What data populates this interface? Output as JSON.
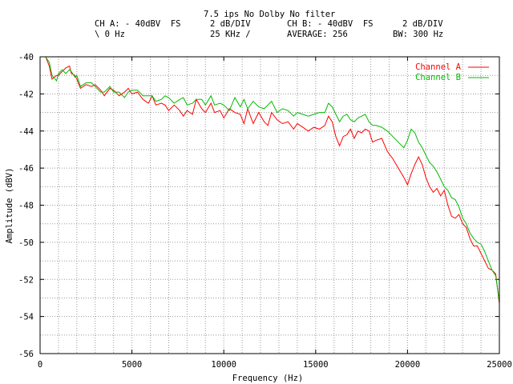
{
  "header": {
    "title": "7.5 ips No Dolby No filter",
    "cha_label": "CH A: - 40dBV  FS",
    "cha_div": "2 dB/DIV",
    "chb_label": "CH B: - 40dBV  FS",
    "chb_div": "2 dB/DIV",
    "start": "\\ 0 Hz",
    "span": "25 KHz /",
    "average": "AVERAGE: 256",
    "bw": "BW: 300 Hz"
  },
  "chart_data": {
    "type": "line",
    "xlabel": "Frequency (Hz)",
    "ylabel": "Amplitude (dBV)",
    "xlim": [
      0,
      25000
    ],
    "ylim": [
      -56,
      -40
    ],
    "xticks": [
      0,
      5000,
      10000,
      15000,
      20000,
      25000
    ],
    "xtick_labels": [
      "0",
      "5000",
      "10000",
      "15000",
      "20000",
      "25000"
    ],
    "yticks": [
      -56,
      -54,
      -52,
      -50,
      -48,
      -46,
      -44,
      -42,
      -40
    ],
    "ytick_labels": [
      "-56",
      "-54",
      "-52",
      "-50",
      "-48",
      "-46",
      "-44",
      "-42",
      "-40"
    ],
    "grid": true,
    "legend_position": "top-right",
    "series": [
      {
        "name": "Channel A",
        "color": "#ff0000",
        "x": [
          300,
          500,
          650,
          900,
          1000,
          1200,
          1400,
          1600,
          1700,
          1900,
          2000,
          2200,
          2500,
          2800,
          3000,
          3300,
          3500,
          3800,
          4000,
          4300,
          4600,
          4800,
          5000,
          5300,
          5600,
          5900,
          6100,
          6300,
          6600,
          6800,
          7000,
          7300,
          7600,
          7800,
          8000,
          8300,
          8500,
          8800,
          9000,
          9300,
          9500,
          9800,
          10000,
          10300,
          10600,
          10900,
          11100,
          11300,
          11600,
          11900,
          12200,
          12400,
          12600,
          12900,
          13200,
          13500,
          13800,
          14000,
          14300,
          14600,
          14900,
          15200,
          15500,
          15700,
          15900,
          16100,
          16300,
          16500,
          16700,
          16900,
          17100,
          17300,
          17500,
          17700,
          17900,
          18100,
          18300,
          18600,
          18900,
          19200,
          19500,
          19800,
          20000,
          20200,
          20400,
          20600,
          20800,
          21000,
          21200,
          21400,
          21600,
          21800,
          22000,
          22200,
          22400,
          22600,
          22800,
          23000,
          23200,
          23400,
          23600,
          23800,
          24000,
          24200,
          24400,
          24600,
          24800,
          25000
        ],
        "y": [
          -40.0,
          -40.5,
          -41.2,
          -41.0,
          -41.0,
          -40.8,
          -40.6,
          -40.5,
          -40.9,
          -41.0,
          -41.2,
          -41.7,
          -41.5,
          -41.6,
          -41.5,
          -41.8,
          -42.1,
          -41.7,
          -41.8,
          -42.1,
          -41.9,
          -41.7,
          -42.0,
          -41.9,
          -42.3,
          -42.5,
          -42.1,
          -42.6,
          -42.5,
          -42.6,
          -42.9,
          -42.6,
          -42.9,
          -43.2,
          -42.9,
          -43.1,
          -42.3,
          -42.8,
          -43.0,
          -42.5,
          -43.0,
          -42.9,
          -43.3,
          -42.8,
          -43.0,
          -43.1,
          -43.6,
          -42.8,
          -43.6,
          -43.0,
          -43.5,
          -43.7,
          -43.0,
          -43.4,
          -43.6,
          -43.5,
          -43.9,
          -43.6,
          -43.8,
          -44.0,
          -43.8,
          -43.9,
          -43.7,
          -43.2,
          -43.5,
          -44.3,
          -44.8,
          -44.3,
          -44.2,
          -43.9,
          -44.4,
          -44.0,
          -44.1,
          -43.9,
          -44.0,
          -44.6,
          -44.5,
          -44.4,
          -45.1,
          -45.5,
          -46.0,
          -46.5,
          -46.9,
          -46.3,
          -45.8,
          -45.4,
          -45.8,
          -46.5,
          -47.0,
          -47.3,
          -47.1,
          -47.5,
          -47.2,
          -48.0,
          -48.6,
          -48.7,
          -48.5,
          -49.0,
          -49.2,
          -49.8,
          -50.2,
          -50.2,
          -50.6,
          -51.0,
          -51.4,
          -51.5,
          -51.7,
          -53.3
        ],
        "note": ""
      },
      {
        "name": "Channel B",
        "color": "#00bb00",
        "x": [
          300,
          500,
          650,
          900,
          1000,
          1200,
          1400,
          1600,
          1700,
          1900,
          2000,
          2200,
          2500,
          2800,
          3000,
          3300,
          3500,
          3800,
          4000,
          4300,
          4600,
          4800,
          5000,
          5300,
          5600,
          5900,
          6100,
          6300,
          6600,
          6800,
          7000,
          7300,
          7600,
          7800,
          8000,
          8300,
          8500,
          8800,
          9000,
          9300,
          9500,
          9800,
          10000,
          10300,
          10600,
          10900,
          11100,
          11300,
          11600,
          11900,
          12200,
          12400,
          12600,
          12900,
          13200,
          13500,
          13800,
          14000,
          14300,
          14600,
          14900,
          15200,
          15500,
          15700,
          15900,
          16100,
          16300,
          16500,
          16700,
          16900,
          17100,
          17300,
          17500,
          17700,
          17900,
          18100,
          18300,
          18600,
          18900,
          19200,
          19500,
          19800,
          20000,
          20200,
          20400,
          20600,
          20800,
          21000,
          21200,
          21400,
          21600,
          21800,
          22000,
          22200,
          22400,
          22600,
          22800,
          23000,
          23200,
          23400,
          23600,
          23800,
          24000,
          24200,
          24400,
          24600,
          24800,
          25000
        ],
        "y": [
          -40.0,
          -40.3,
          -41.0,
          -41.3,
          -40.9,
          -40.7,
          -40.9,
          -40.7,
          -40.8,
          -41.1,
          -41.0,
          -41.6,
          -41.4,
          -41.4,
          -41.6,
          -41.9,
          -41.9,
          -41.6,
          -41.9,
          -41.9,
          -42.2,
          -41.9,
          -41.8,
          -41.8,
          -42.1,
          -42.1,
          -42.1,
          -42.4,
          -42.3,
          -42.1,
          -42.2,
          -42.5,
          -42.3,
          -42.2,
          -42.6,
          -42.5,
          -42.3,
          -42.3,
          -42.6,
          -42.1,
          -42.6,
          -42.5,
          -42.6,
          -42.9,
          -42.2,
          -42.7,
          -42.3,
          -42.8,
          -42.4,
          -42.7,
          -42.8,
          -42.6,
          -42.4,
          -43.0,
          -42.8,
          -42.9,
          -43.2,
          -43.0,
          -43.1,
          -43.2,
          -43.1,
          -43.0,
          -43.0,
          -42.5,
          -42.7,
          -43.1,
          -43.5,
          -43.2,
          -43.1,
          -43.4,
          -43.5,
          -43.3,
          -43.2,
          -43.1,
          -43.5,
          -43.7,
          -43.7,
          -43.8,
          -44.0,
          -44.3,
          -44.6,
          -44.9,
          -44.5,
          -43.9,
          -44.1,
          -44.6,
          -44.9,
          -45.3,
          -45.7,
          -45.9,
          -46.2,
          -46.6,
          -47.0,
          -47.2,
          -47.6,
          -47.7,
          -48.1,
          -48.7,
          -49.0,
          -49.5,
          -49.8,
          -50.0,
          -50.1,
          -50.5,
          -51.0,
          -51.5,
          -51.8,
          -53.2
        ],
        "note": ""
      }
    ]
  }
}
